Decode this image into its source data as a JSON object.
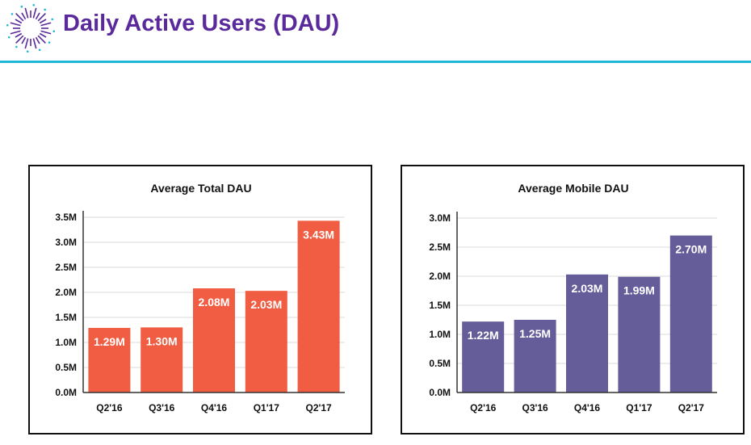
{
  "header": {
    "title": "Daily Active Users (DAU)",
    "logo_icon": "starburst-logo",
    "accent_color": "#5a2a9c",
    "rule_color": "#1fb7d6"
  },
  "chart_data": [
    {
      "type": "bar",
      "title": "Average Total DAU",
      "categories": [
        "Q2'16",
        "Q3'16",
        "Q4'16",
        "Q1'17",
        "Q2'17"
      ],
      "values": [
        1.29,
        1.3,
        2.08,
        2.03,
        3.43
      ],
      "data_labels": [
        "1.29M",
        "1.30M",
        "2.08M",
        "2.03M",
        "3.43M"
      ],
      "yticks": [
        0,
        0.5,
        1.0,
        1.5,
        2.0,
        2.5,
        3.0,
        3.5
      ],
      "ytick_labels": [
        "0.0M",
        "0.5M",
        "1.0M",
        "1.5M",
        "2.0M",
        "2.5M",
        "3.0M",
        "3.5M"
      ],
      "ylim": [
        0,
        3.5
      ],
      "unit": "M",
      "grid": true,
      "color": "#f15d42"
    },
    {
      "type": "bar",
      "title": "Average Mobile DAU",
      "categories": [
        "Q2'16",
        "Q3'16",
        "Q4'16",
        "Q1'17",
        "Q2'17"
      ],
      "values": [
        1.22,
        1.25,
        2.03,
        1.99,
        2.7
      ],
      "data_labels": [
        "1.22M",
        "1.25M",
        "2.03M",
        "1.99M",
        "2.70M"
      ],
      "yticks": [
        0,
        0.5,
        1.0,
        1.5,
        2.0,
        2.5,
        3.0
      ],
      "ytick_labels": [
        "0.0M",
        "0.5M",
        "1.0M",
        "1.5M",
        "2.0M",
        "2.5M",
        "3.0M"
      ],
      "ylim": [
        0,
        3.0
      ],
      "unit": "M",
      "grid": true,
      "color": "#655c9a"
    }
  ]
}
